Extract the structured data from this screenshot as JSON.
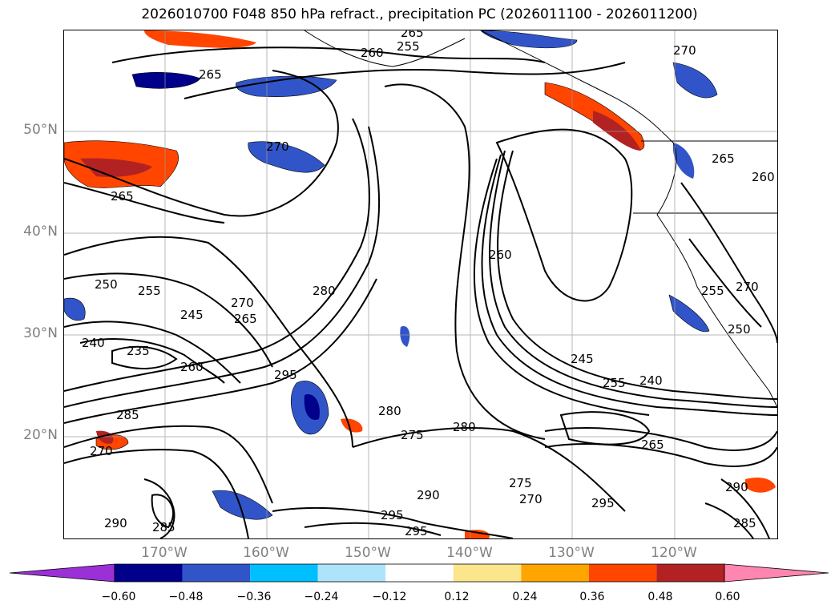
{
  "title": "2026010700 F048 850 hPa refract., precipitation PC (2026011100 - 2026011200)",
  "lat_labels": [
    "50°N",
    "40°N",
    "30°N",
    "20°N"
  ],
  "lon_labels": [
    "170°W",
    "160°W",
    "150°W",
    "140°W",
    "130°W",
    "120°W"
  ],
  "colorbar": {
    "ticks": [
      "−0.60",
      "−0.48",
      "−0.36",
      "−0.24",
      "−0.12",
      "0.12",
      "0.24",
      "0.36",
      "0.48",
      "0.60"
    ],
    "colors": [
      "#9b30d6",
      "#00008b",
      "#3155c9",
      "#00bfff",
      "#ade4fb",
      "#ffffff",
      "#fbe68c",
      "#ffa500",
      "#ff4500",
      "#b22222",
      "#ff86b0"
    ]
  },
  "contour_labels": [
    "265",
    "260",
    "255",
    "270",
    "265",
    "270",
    "265",
    "250",
    "255",
    "270",
    "265",
    "245",
    "240",
    "235",
    "260",
    "280",
    "295",
    "285",
    "270",
    "290",
    "285",
    "280",
    "275",
    "280",
    "295",
    "295",
    "290",
    "275",
    "270",
    "260",
    "245",
    "255",
    "240",
    "265",
    "295",
    "265",
    "260",
    "270",
    "255",
    "250",
    "285",
    "290"
  ]
}
